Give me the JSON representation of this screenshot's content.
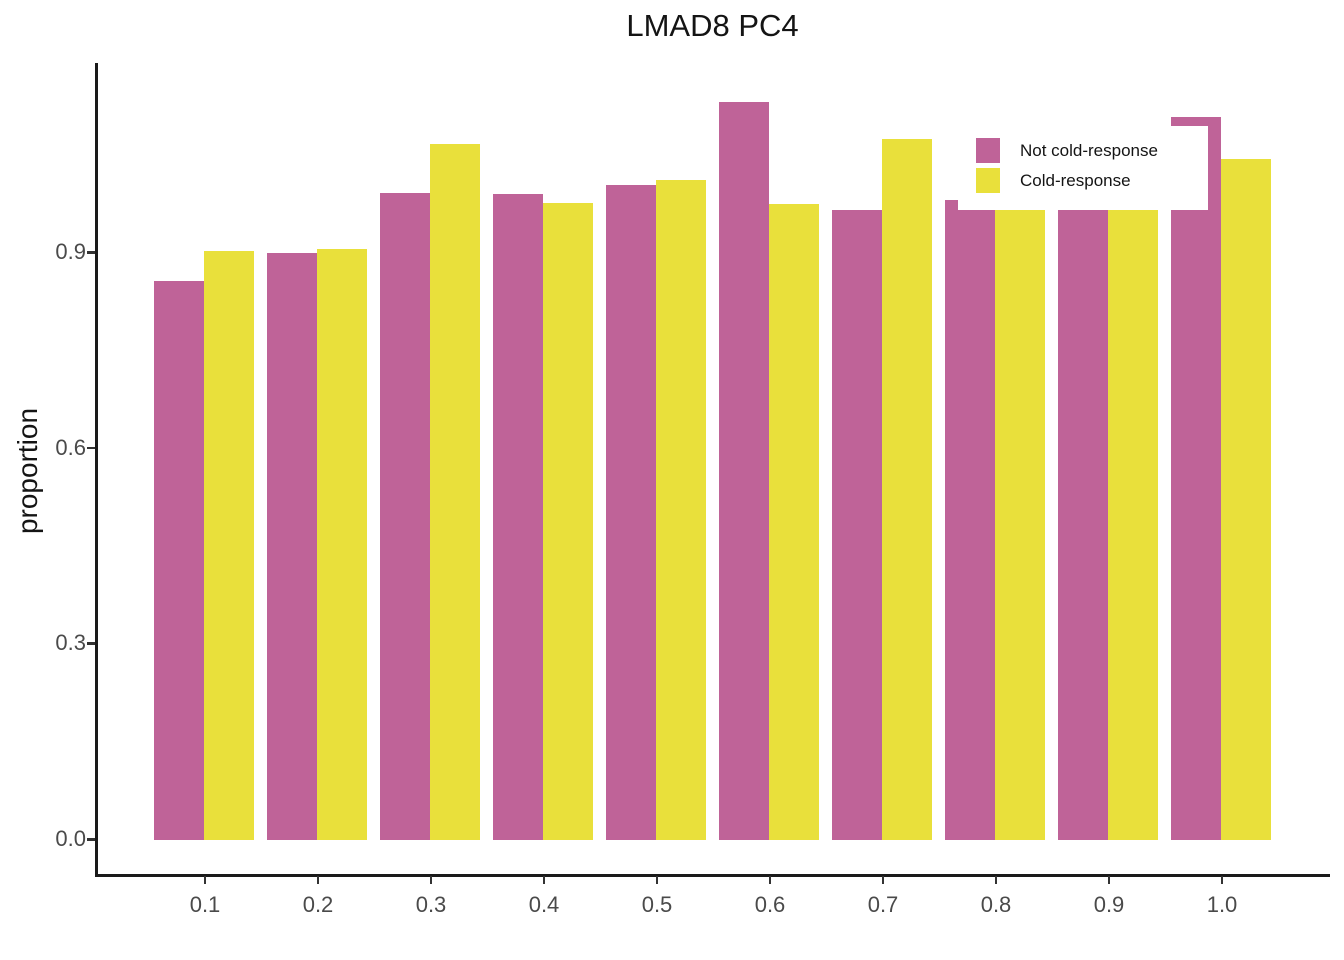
{
  "title": "LMAD8 PC4",
  "chart_data": {
    "type": "bar",
    "title": "LMAD8 PC4",
    "xlabel": "",
    "ylabel": "proportion",
    "categories": [
      "0.1",
      "0.2",
      "0.3",
      "0.4",
      "0.5",
      "0.6",
      "0.7",
      "0.8",
      "0.9",
      "1.0"
    ],
    "series": [
      {
        "name": "Not cold-response",
        "color": "#BF6398",
        "values": [
          0.857,
          0.901,
          0.993,
          0.991,
          1.004,
          1.132,
          0.966,
          0.982,
          0.966,
          1.109
        ]
      },
      {
        "name": "Cold-response",
        "color": "#E9E03B",
        "values": [
          0.904,
          0.906,
          1.068,
          0.977,
          1.012,
          0.976,
          1.075,
          0.966,
          0.966,
          1.044
        ]
      }
    ],
    "ylim": [
      0,
      1.19
    ],
    "yticks": {
      "values": [
        0,
        0.3,
        0.6,
        0.9
      ],
      "labels": [
        "0.0",
        "0.3",
        "0.6",
        "0.9"
      ]
    },
    "grid": false,
    "legend_position": "top-right-inside",
    "notes": "legend has opaque white background that overlaps tops of bars in groups 0.8-1.0"
  },
  "legend": {
    "items": [
      {
        "label": "Not cold-response",
        "color": "#BF6398"
      },
      {
        "label": "Cold-response",
        "color": "#E9E03B"
      }
    ]
  }
}
